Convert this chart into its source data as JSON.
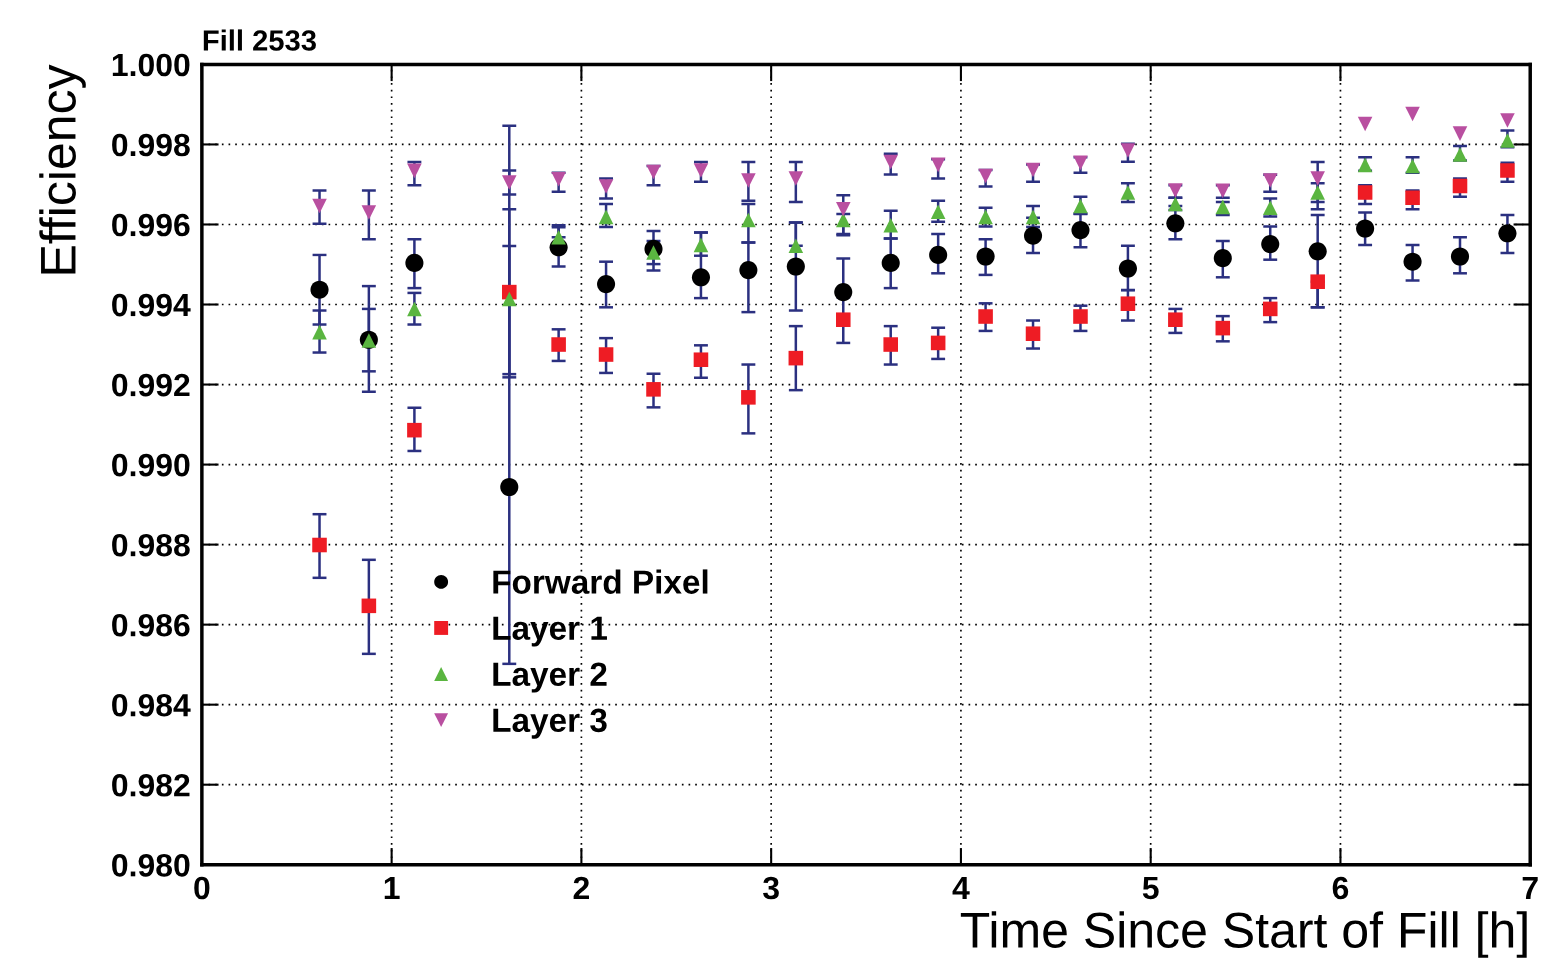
{
  "chart_data": {
    "type": "scatter",
    "title": "Fill 2533",
    "xlabel": "Time Since Start of Fill [h]",
    "ylabel": "Efficiency",
    "xlim": [
      0,
      7
    ],
    "xticks": [
      0,
      1,
      2,
      3,
      4,
      5,
      6,
      7
    ],
    "ylim": [
      0.98,
      1.0
    ],
    "yticks": [
      {
        "value": 0.98,
        "label": "0.980"
      },
      {
        "value": 0.982,
        "label": "0.982"
      },
      {
        "value": 0.984,
        "label": "0.984"
      },
      {
        "value": 0.986,
        "label": "0.986"
      },
      {
        "value": 0.988,
        "label": "0.988"
      },
      {
        "value": 0.99,
        "label": "0.990"
      },
      {
        "value": 0.992,
        "label": "0.992"
      },
      {
        "value": 0.994,
        "label": "0.994"
      },
      {
        "value": 0.996,
        "label": "0.996"
      },
      {
        "value": 0.998,
        "label": "0.998"
      },
      {
        "value": 1.0,
        "label": "1.000"
      }
    ],
    "grid": true,
    "legend": "bottom left",
    "x": [
      0.62,
      0.88,
      1.12,
      1.62,
      1.88,
      2.13,
      2.38,
      2.63,
      2.88,
      3.13,
      3.38,
      3.63,
      3.88,
      4.13,
      4.38,
      4.63,
      4.88,
      5.13,
      5.38,
      5.63,
      5.88,
      6.13,
      6.38,
      6.63,
      6.88
    ],
    "series": [
      {
        "name": "Forward Pixel",
        "color": "#000000",
        "marker": "circle",
        "values": [
          0.99437,
          0.99312,
          0.99504,
          0.98944,
          0.99543,
          0.99451,
          0.99539,
          0.99468,
          0.99486,
          0.99495,
          0.99431,
          0.99504,
          0.99524,
          0.9952,
          0.99572,
          0.99586,
          0.9949,
          0.99603,
          0.99516,
          0.99551,
          0.99533,
          0.9959,
          0.99507,
          0.9952,
          0.99578
        ],
        "errors": [
          [
            0.9935,
            0.99524
          ],
          [
            0.99182,
            0.99446
          ],
          [
            0.99441,
            0.99563
          ],
          [
            0.98502,
            0.99546
          ],
          [
            0.99495,
            0.99593
          ],
          [
            0.99393,
            0.99507
          ],
          [
            0.99485,
            0.99584
          ],
          [
            0.99416,
            0.9958
          ],
          [
            0.99381,
            0.99555
          ],
          [
            0.99385,
            0.99605
          ],
          [
            0.99431,
            0.99515
          ],
          [
            0.99441,
            0.99565
          ],
          [
            0.99478,
            0.99576
          ],
          [
            0.99474,
            0.99563
          ],
          [
            0.99529,
            0.99617
          ],
          [
            0.99543,
            0.99626
          ],
          [
            0.99436,
            0.99547
          ],
          [
            0.99563,
            0.99646
          ],
          [
            0.99468,
            0.99559
          ],
          [
            0.99512,
            0.99595
          ],
          [
            0.99393,
            0.99624
          ],
          [
            0.99549,
            0.9963
          ],
          [
            0.9946,
            0.99549
          ],
          [
            0.99478,
            0.99568
          ],
          [
            0.99529,
            0.99624
          ]
        ]
      },
      {
        "name": "Layer 1",
        "color": "#ee1c24",
        "marker": "square",
        "values": [
          0.98799,
          0.98647,
          0.99086,
          0.99431,
          0.993,
          0.99275,
          0.99188,
          0.99262,
          0.99168,
          0.99266,
          0.99362,
          0.993,
          0.99304,
          0.9937,
          0.99327,
          0.9937,
          0.99402,
          0.99362,
          0.99341,
          0.99389,
          0.99457,
          0.9968,
          0.99667,
          0.99696,
          0.99735
        ],
        "errors": [
          [
            0.98717,
            0.98876
          ],
          [
            0.98527,
            0.98762
          ],
          [
            0.99034,
            0.99142
          ],
          [
            0.99226,
            0.99847
          ],
          [
            0.99259,
            0.99338
          ],
          [
            0.99229,
            0.99316
          ],
          [
            0.99143,
            0.99227
          ],
          [
            0.99217,
            0.99298
          ],
          [
            0.99078,
            0.9925
          ],
          [
            0.99186,
            0.99346
          ],
          [
            0.99304,
            0.99418
          ],
          [
            0.9925,
            0.99346
          ],
          [
            0.99264,
            0.99342
          ],
          [
            0.99334,
            0.99403
          ],
          [
            0.9929,
            0.9936
          ],
          [
            0.99334,
            0.99397
          ],
          [
            0.9936,
            0.99436
          ],
          [
            0.99329,
            0.99389
          ],
          [
            0.99308,
            0.99371
          ],
          [
            0.99356,
            0.99416
          ],
          [
            0.99393,
            0.99457
          ],
          [
            0.99651,
            0.99698
          ],
          [
            0.99638,
            0.99685
          ],
          [
            0.99669,
            0.99715
          ],
          [
            0.99707,
            0.99754
          ]
        ]
      },
      {
        "name": "Layer 2",
        "color": "#5ab540",
        "marker": "triangle",
        "values": [
          0.99331,
          0.9931,
          0.99389,
          0.99414,
          0.99568,
          0.99619,
          0.9953,
          0.99549,
          0.99611,
          0.99547,
          0.99611,
          0.99598,
          0.99632,
          0.99619,
          0.99619,
          0.99646,
          0.9968,
          0.99651,
          0.99644,
          0.99642,
          0.9968,
          0.99749,
          0.99746,
          0.99775,
          0.9981
        ],
        "errors": [
          [
            0.9928,
            0.99385
          ],
          [
            0.99233,
            0.99389
          ],
          [
            0.9935,
            0.99429
          ],
          [
            0.99218,
            0.99638
          ],
          [
            0.99568,
            0.99598
          ],
          [
            0.99594,
            0.99651
          ],
          [
            0.99501,
            0.99559
          ],
          [
            0.99522,
            0.9958
          ],
          [
            0.99555,
            0.99651
          ],
          [
            0.99547,
            0.99605
          ],
          [
            0.99576,
            0.99626
          ],
          [
            0.99565,
            0.99634
          ],
          [
            0.99607,
            0.99659
          ],
          [
            0.99595,
            0.99642
          ],
          [
            0.99594,
            0.99646
          ],
          [
            0.99627,
            0.99669
          ],
          [
            0.99656,
            0.99703
          ],
          [
            0.99636,
            0.99667
          ],
          [
            0.99624,
            0.99656
          ],
          [
            0.9962,
            0.99665
          ],
          [
            0.99656,
            0.99703
          ],
          [
            0.99734,
            0.99768
          ],
          [
            0.99729,
            0.99768
          ],
          [
            0.9976,
            0.99796
          ],
          [
            0.99793,
            0.99835
          ]
        ]
      },
      {
        "name": "Layer 3",
        "color": "#b94fa0",
        "marker": "triangle_down",
        "values": [
          0.99646,
          0.9963,
          0.99734,
          0.99705,
          0.99713,
          0.99695,
          0.99731,
          0.99735,
          0.9971,
          0.99715,
          0.99638,
          0.99756,
          0.99749,
          0.99721,
          0.99736,
          0.99754,
          0.99785,
          0.99685,
          0.99684,
          0.9971,
          0.99715,
          0.99851,
          0.99876,
          0.99827,
          0.9986
        ],
        "errors": [
          [
            0.99602,
            0.99685
          ],
          [
            0.99563,
            0.99685
          ],
          [
            0.99698,
            0.99756
          ],
          [
            0.99675,
            0.99735
          ],
          [
            0.99682,
            0.99729
          ],
          [
            0.99665,
            0.99715
          ],
          [
            0.99698,
            0.99746
          ],
          [
            0.99707,
            0.99756
          ],
          [
            0.99659,
            0.99756
          ],
          [
            0.99656,
            0.99756
          ],
          [
            0.99573,
            0.99673
          ],
          [
            0.99725,
            0.99777
          ],
          [
            0.99715,
            0.99763
          ],
          [
            0.99695,
            0.99736
          ],
          [
            0.99707,
            0.9975
          ],
          [
            0.99729,
            0.99768
          ],
          [
            0.99757,
            0.99802
          ],
          [
            0.99667,
            0.99698
          ],
          [
            0.99667,
            0.99698
          ],
          [
            0.99682,
            0.99724
          ],
          [
            0.99638,
            0.99756
          ],
          null,
          null,
          null,
          null
        ]
      }
    ]
  }
}
